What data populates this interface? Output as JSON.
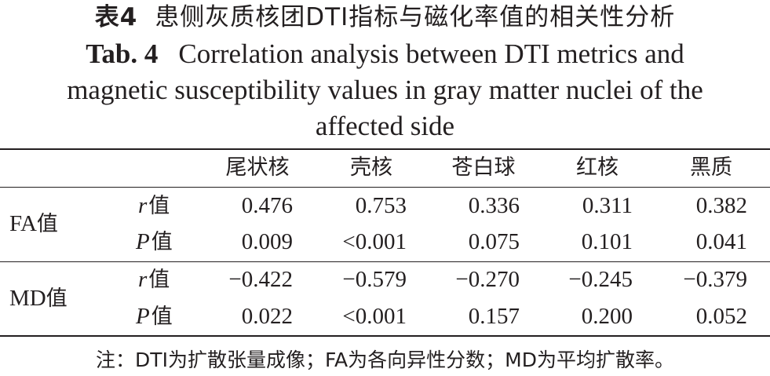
{
  "caption": {
    "cn_label": "表4",
    "cn_title": "患侧灰质核团DTI指标与磁化率值的相关性分析",
    "en_label": "Tab. 4",
    "en_title_line1": "Correlation analysis between DTI metrics and",
    "en_title_line2": "magnetic susceptibility values in gray matter nuclei of the",
    "en_title_line3": "affected side"
  },
  "table": {
    "headers": [
      "尾状核",
      "壳核",
      "苍白球",
      "红核",
      "黑质"
    ],
    "groups": [
      {
        "label_en": "FA",
        "label_cn": "值",
        "rows": [
          {
            "stat": "r",
            "stat_cn": "值",
            "values": [
              "0.476",
              "0.753",
              "0.336",
              "0.311",
              "0.382"
            ]
          },
          {
            "stat": "P",
            "stat_cn": "值",
            "values": [
              "0.009",
              "<0.001",
              "0.075",
              "0.101",
              "0.041"
            ]
          }
        ]
      },
      {
        "label_en": "MD",
        "label_cn": "值",
        "rows": [
          {
            "stat": "r",
            "stat_cn": "值",
            "values": [
              "−0.422",
              "−0.579",
              "−0.270",
              "−0.245",
              "−0.379"
            ]
          },
          {
            "stat": "P",
            "stat_cn": "值",
            "values": [
              "0.022",
              "<0.001",
              "0.157",
              "0.200",
              "0.052"
            ]
          }
        ]
      }
    ]
  },
  "note": "注：DTI为扩散张量成像；FA为各向异性分数；MD为平均扩散率。"
}
